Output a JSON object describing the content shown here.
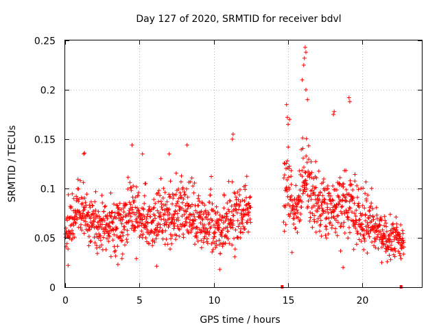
{
  "chart_data": {
    "type": "scatter",
    "title": "Day 127 of 2020, SRMTID for receiver bdvl",
    "xlabel": "GPS time / hours",
    "ylabel": "SRMTID / TECUs",
    "xlim": [
      0,
      24
    ],
    "ylim": [
      0,
      0.25
    ],
    "x_ticks": [
      0,
      5,
      10,
      15,
      20
    ],
    "x_tick_labels": [
      "0",
      "5",
      "10",
      "15",
      "20"
    ],
    "y_ticks": [
      0,
      0.05,
      0.1,
      0.15,
      0.2,
      0.25
    ],
    "y_tick_labels": [
      "0",
      "0.05",
      "0.1",
      "0.15",
      "0.2",
      "0.25"
    ],
    "grid": true,
    "marker": "+",
    "color": "#ff0000",
    "zero_markers_x": [
      14.6,
      22.6
    ],
    "series": [
      {
        "name": "SRMTID",
        "segments": [
          {
            "x_start": 0.0,
            "x_end": 12.5
          },
          {
            "x_start": 14.7,
            "x_end": 22.8
          }
        ],
        "profile": [
          {
            "x": 0.0,
            "mean": 0.058,
            "spread": 0.022
          },
          {
            "x": 0.5,
            "mean": 0.065,
            "spread": 0.025
          },
          {
            "x": 1.0,
            "mean": 0.08,
            "spread": 0.028
          },
          {
            "x": 1.5,
            "mean": 0.068,
            "spread": 0.022
          },
          {
            "x": 2.0,
            "mean": 0.062,
            "spread": 0.02
          },
          {
            "x": 3.0,
            "mean": 0.062,
            "spread": 0.02
          },
          {
            "x": 4.0,
            "mean": 0.068,
            "spread": 0.025
          },
          {
            "x": 4.5,
            "mean": 0.075,
            "spread": 0.03
          },
          {
            "x": 5.0,
            "mean": 0.07,
            "spread": 0.028
          },
          {
            "x": 6.0,
            "mean": 0.068,
            "spread": 0.026
          },
          {
            "x": 7.0,
            "mean": 0.072,
            "spread": 0.027
          },
          {
            "x": 8.0,
            "mean": 0.078,
            "spread": 0.03
          },
          {
            "x": 9.0,
            "mean": 0.066,
            "spread": 0.025
          },
          {
            "x": 10.0,
            "mean": 0.062,
            "spread": 0.025
          },
          {
            "x": 10.5,
            "mean": 0.058,
            "spread": 0.026
          },
          {
            "x": 11.0,
            "mean": 0.072,
            "spread": 0.03
          },
          {
            "x": 11.5,
            "mean": 0.078,
            "spread": 0.03
          },
          {
            "x": 12.0,
            "mean": 0.072,
            "spread": 0.025
          },
          {
            "x": 12.5,
            "mean": 0.085,
            "spread": 0.02
          },
          {
            "x": 14.7,
            "mean": 0.1,
            "spread": 0.035
          },
          {
            "x": 15.0,
            "mean": 0.11,
            "spread": 0.035
          },
          {
            "x": 15.5,
            "mean": 0.065,
            "spread": 0.022
          },
          {
            "x": 16.0,
            "mean": 0.11,
            "spread": 0.035
          },
          {
            "x": 16.5,
            "mean": 0.1,
            "spread": 0.035
          },
          {
            "x": 17.0,
            "mean": 0.08,
            "spread": 0.03
          },
          {
            "x": 18.0,
            "mean": 0.082,
            "spread": 0.03
          },
          {
            "x": 19.0,
            "mean": 0.085,
            "spread": 0.03
          },
          {
            "x": 20.0,
            "mean": 0.07,
            "spread": 0.025
          },
          {
            "x": 21.0,
            "mean": 0.06,
            "spread": 0.02
          },
          {
            "x": 21.5,
            "mean": 0.05,
            "spread": 0.018
          },
          {
            "x": 22.0,
            "mean": 0.052,
            "spread": 0.018
          },
          {
            "x": 22.8,
            "mean": 0.045,
            "spread": 0.012
          }
        ],
        "notable_points": [
          {
            "x": 16.15,
            "y": 0.243
          },
          {
            "x": 16.2,
            "y": 0.238
          },
          {
            "x": 16.1,
            "y": 0.232
          },
          {
            "x": 16.05,
            "y": 0.225
          },
          {
            "x": 15.95,
            "y": 0.21
          },
          {
            "x": 16.2,
            "y": 0.2
          },
          {
            "x": 16.3,
            "y": 0.19
          },
          {
            "x": 19.1,
            "y": 0.192
          },
          {
            "x": 19.15,
            "y": 0.188
          },
          {
            "x": 18.1,
            "y": 0.178
          },
          {
            "x": 18.05,
            "y": 0.175
          },
          {
            "x": 14.95,
            "y": 0.172
          },
          {
            "x": 15.0,
            "y": 0.165
          },
          {
            "x": 15.1,
            "y": 0.17
          },
          {
            "x": 14.9,
            "y": 0.185
          },
          {
            "x": 11.3,
            "y": 0.155
          },
          {
            "x": 11.25,
            "y": 0.15
          },
          {
            "x": 4.5,
            "y": 0.144
          },
          {
            "x": 8.2,
            "y": 0.144
          },
          {
            "x": 1.3,
            "y": 0.136
          },
          {
            "x": 1.25,
            "y": 0.135
          },
          {
            "x": 5.2,
            "y": 0.135
          },
          {
            "x": 7.0,
            "y": 0.135
          },
          {
            "x": 3.55,
            "y": 0.023
          },
          {
            "x": 10.4,
            "y": 0.018
          },
          {
            "x": 0.2,
            "y": 0.022
          },
          {
            "x": 21.3,
            "y": 0.025
          },
          {
            "x": 21.9,
            "y": 0.028
          },
          {
            "x": 18.7,
            "y": 0.02
          }
        ]
      }
    ]
  }
}
